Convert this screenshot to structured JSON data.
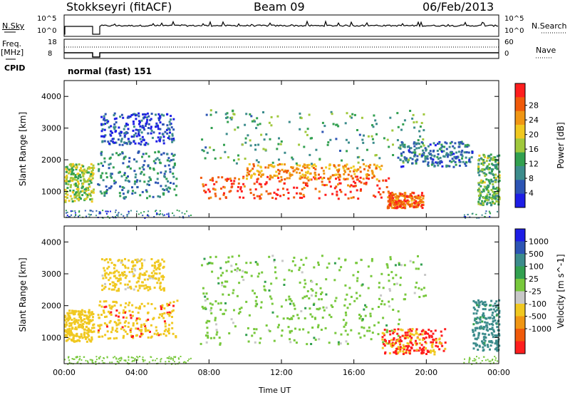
{
  "header": {
    "station": "Stokkseyri (fitACF)",
    "beam": "Beam 09",
    "date": "06/Feb/2013"
  },
  "strip": {
    "nsky_label": "N.Sky",
    "nsky_ticks": [
      "10^5",
      "10^0"
    ],
    "nsearch_label": "N.Search",
    "nsearch_ticks": [
      "10^5",
      "10^0"
    ],
    "freq_label": "Freq.",
    "freq_unit": "[MHz]",
    "freq_ticks": [
      "18",
      "8"
    ],
    "nave_label": "Nave",
    "nave_ticks": [
      "60",
      "0"
    ],
    "cpid_label": "CPID",
    "cpid_text": "normal (fast) 151"
  },
  "colors": {
    "power": [
      "#1e1ee6",
      "#2d55b4",
      "#3c8c8c",
      "#32a050",
      "#a0c83c",
      "#f0c820",
      "#f09614",
      "#f05a0a",
      "#ff1e1e"
    ],
    "velocity": [
      "#1e1ee6",
      "#2d55b4",
      "#3c8c8c",
      "#32a050",
      "#78c83c",
      "#c8c8c8",
      "#f0c820",
      "#f09614",
      "#f05a0a",
      "#ff1e1e"
    ],
    "nodata": "#ffffff"
  },
  "chart_data": [
    {
      "type": "heatmap",
      "title": "Power",
      "xlabel": "Time UT",
      "ylabel": "Slant Range [km]",
      "xlim": [
        0,
        24
      ],
      "ylim": [
        180,
        4500
      ],
      "x_ticks": [
        "00:00",
        "04:00",
        "08:00",
        "12:00",
        "16:00",
        "20:00",
        "00:00"
      ],
      "y_ticks": [
        "1000",
        "2000",
        "3000",
        "4000"
      ],
      "colorbar_label": "Power [dB]",
      "colorbar_ticks": [
        "4",
        "8",
        "12",
        "16",
        "20",
        "24",
        "28"
      ],
      "features": [
        {
          "t": [
            0.0,
            1.6
          ],
          "r": [
            700,
            1900
          ],
          "level": 0.5
        },
        {
          "t": [
            1.8,
            6.2
          ],
          "r": [
            800,
            2300
          ],
          "level": 0.25
        },
        {
          "t": [
            2.0,
            6.0
          ],
          "r": [
            2500,
            3500
          ],
          "level": 0.1
        },
        {
          "t": [
            7.5,
            18.0
          ],
          "r": [
            800,
            1500
          ],
          "level": 0.95
        },
        {
          "t": [
            10.0,
            17.5
          ],
          "r": [
            1400,
            1900
          ],
          "level": 0.75
        },
        {
          "t": [
            7.5,
            20.0
          ],
          "r": [
            1900,
            3600
          ],
          "level": 0.35
        },
        {
          "t": [
            17.8,
            19.8
          ],
          "r": [
            500,
            1000
          ],
          "level": 0.85
        },
        {
          "t": [
            18.5,
            22.5
          ],
          "r": [
            1800,
            2600
          ],
          "level": 0.2
        },
        {
          "t": [
            22.8,
            24.0
          ],
          "r": [
            600,
            2200
          ],
          "level": 0.4
        }
      ]
    },
    {
      "type": "heatmap",
      "title": "Velocity",
      "xlabel": "Time UT",
      "ylabel": "Slant Range [km]",
      "xlim": [
        0,
        24
      ],
      "ylim": [
        180,
        4500
      ],
      "x_ticks": [
        "00:00",
        "04:00",
        "08:00",
        "12:00",
        "16:00",
        "20:00",
        "00:00"
      ],
      "y_ticks": [
        "1000",
        "2000",
        "3000",
        "4000"
      ],
      "colorbar_label": "Velocity [m s^-1]",
      "colorbar_ticks": [
        "1000",
        "500",
        "100",
        "25",
        "-25",
        "-100",
        "-500",
        "-1000"
      ],
      "features": [
        {
          "t": [
            0.0,
            1.6
          ],
          "r": [
            900,
            1900
          ],
          "value": -300
        },
        {
          "t": [
            1.8,
            6.2
          ],
          "r": [
            1000,
            2200
          ],
          "value": -400
        },
        {
          "t": [
            2.0,
            5.5
          ],
          "r": [
            2500,
            3500
          ],
          "value": -150
        },
        {
          "t": [
            7.5,
            18.5
          ],
          "r": [
            800,
            2200
          ],
          "value": 0
        },
        {
          "t": [
            7.5,
            20.0
          ],
          "r": [
            2200,
            3600
          ],
          "value": 0
        },
        {
          "t": [
            17.5,
            21.0
          ],
          "r": [
            500,
            1300
          ],
          "value": -550
        },
        {
          "t": [
            22.5,
            24.0
          ],
          "r": [
            600,
            2200
          ],
          "value": 150
        }
      ]
    }
  ]
}
